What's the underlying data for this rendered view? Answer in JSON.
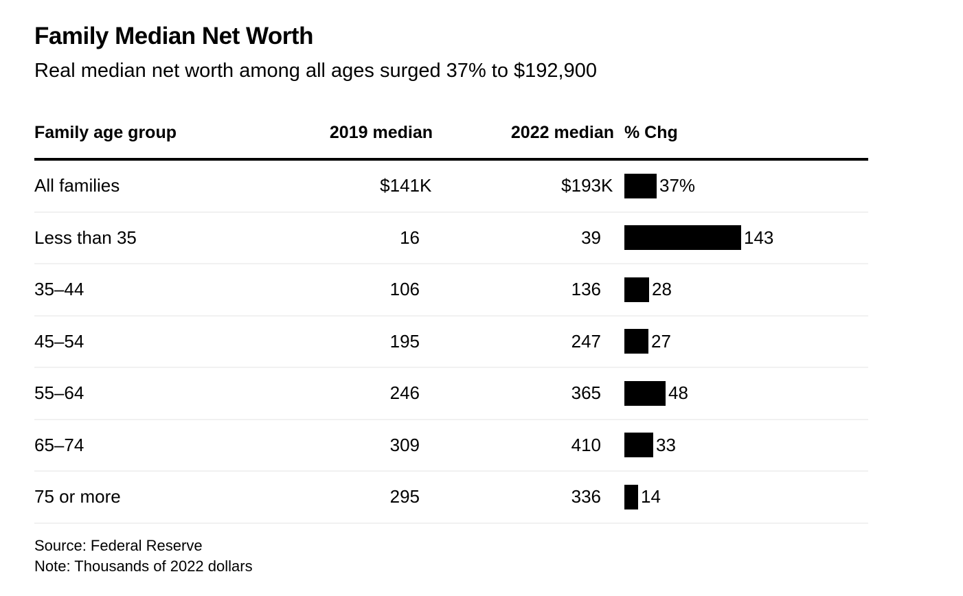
{
  "header": {
    "title": "Family Median Net Worth",
    "subtitle": "Real median net worth among all ages surged 37% to $192,900"
  },
  "table": {
    "columns": [
      "Family age group",
      "2019 median",
      "2022 median",
      "% Chg"
    ],
    "rows": [
      {
        "group": "All families",
        "m2019": "$141K",
        "m2022": "$193K",
        "pct": 37,
        "pct_label": "37%"
      },
      {
        "group": "Less than 35",
        "m2019": "16",
        "m2022": "39",
        "pct": 143,
        "pct_label": "143"
      },
      {
        "group": "35–44",
        "m2019": "106",
        "m2022": "136",
        "pct": 28,
        "pct_label": "28"
      },
      {
        "group": "45–54",
        "m2019": "195",
        "m2022": "247",
        "pct": 27,
        "pct_label": "27"
      },
      {
        "group": "55–64",
        "m2019": "246",
        "m2022": "365",
        "pct": 48,
        "pct_label": "48"
      },
      {
        "group": "65–74",
        "m2019": "309",
        "m2022": "410",
        "pct": 33,
        "pct_label": "33"
      },
      {
        "group": "75 or more",
        "m2019": "295",
        "m2022": "336",
        "pct": 14,
        "pct_label": "14"
      }
    ]
  },
  "footer": {
    "source": "Source: Federal Reserve",
    "note": "Note: Thousands of 2022 dollars"
  },
  "colors": {
    "bar": "#000000",
    "text": "#000000",
    "header_rule": "#000000",
    "row_separator": "#f1f1f1",
    "background": "#ffffff"
  },
  "chart_data": {
    "type": "table",
    "title": "Family Median Net Worth",
    "subtitle": "Real median net worth among all ages surged 37% to $192,900",
    "columns": [
      "Family age group",
      "2019 median",
      "2022 median",
      "% Chg"
    ],
    "categories": [
      "All families",
      "Less than 35",
      "35–44",
      "45–54",
      "55–64",
      "65–74",
      "75 or more"
    ],
    "series": [
      {
        "name": "2019 median",
        "values": [
          141,
          16,
          106,
          195,
          246,
          309,
          295
        ]
      },
      {
        "name": "2022 median",
        "values": [
          193,
          39,
          136,
          247,
          365,
          410,
          336
        ]
      },
      {
        "name": "% Chg",
        "values": [
          37,
          143,
          28,
          27,
          48,
          33,
          14
        ]
      }
    ],
    "bar_column": "% Chg",
    "units": "Thousands of 2022 dollars",
    "source": "Source: Federal Reserve",
    "note": "Note: Thousands of 2022 dollars",
    "legend": false,
    "grid": false
  }
}
